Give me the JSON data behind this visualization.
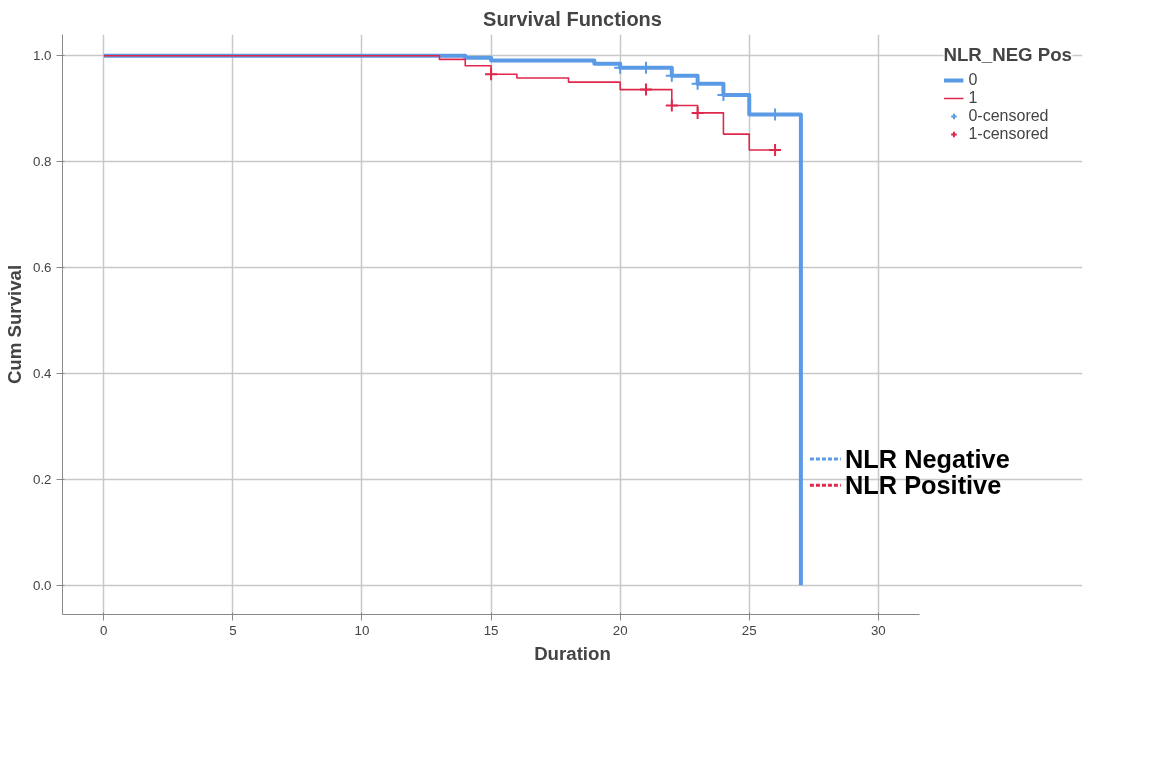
{
  "chart_data": {
    "type": "step",
    "title": "Survival Functions",
    "xlabel": "Duration",
    "ylabel": "Cum Survival",
    "legend_title": "NLR_NEG Pos",
    "xlim": [
      -1.6,
      31.6
    ],
    "xticks": [
      0,
      5,
      10,
      15,
      20,
      25,
      30
    ],
    "ylim": [
      -0.055,
      1.04
    ],
    "yticks": [
      {
        "value": 0,
        "label": "0.0"
      },
      {
        "value": 0.2,
        "label": "0.2"
      },
      {
        "value": 0.4,
        "label": "0.4"
      },
      {
        "value": 0.6,
        "label": "0.6"
      },
      {
        "value": 0.8,
        "label": "0.8"
      },
      {
        "value": 1,
        "label": "1.0"
      }
    ],
    "grid": true,
    "legend": "right",
    "series": [
      {
        "name": "0",
        "color": "#5b9be6",
        "x": [
          0,
          14,
          15,
          19,
          20,
          22,
          23,
          24,
          25,
          27
        ],
        "values": [
          1,
          0.996,
          0.991,
          0.985,
          0.977,
          0.962,
          0.947,
          0.926,
          0.889,
          0
        ]
      },
      {
        "name": "1",
        "color": "#e0284c",
        "x": [
          0,
          13,
          14,
          15,
          16,
          18,
          20,
          22,
          23,
          24,
          25,
          26
        ],
        "values": [
          1,
          0.993,
          0.981,
          0.965,
          0.958,
          0.95,
          0.936,
          0.906,
          0.892,
          0.852,
          0.822,
          0.822
        ]
      },
      {
        "name": "0-censored",
        "type": "scatter",
        "marker": "cross",
        "color": "#5b9be6",
        "x": [
          20,
          21,
          22,
          23,
          24,
          26
        ],
        "values": [
          0.977,
          0.977,
          0.962,
          0.947,
          0.926,
          0.889
        ]
      },
      {
        "name": "1-censored",
        "type": "scatter",
        "marker": "cross",
        "color": "#e0284c",
        "x": [
          15,
          21,
          22,
          23,
          26
        ],
        "values": [
          0.965,
          0.936,
          0.906,
          0.892,
          0.822
        ]
      }
    ],
    "annotations": [
      "NLR Negative",
      "NLR Positive"
    ]
  }
}
